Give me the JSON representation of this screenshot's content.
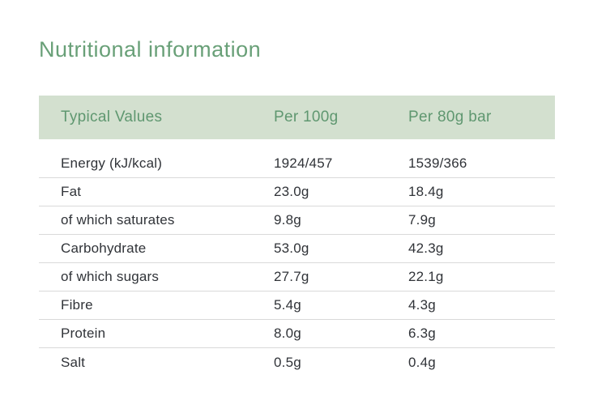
{
  "page": {
    "title": "Nutritional information"
  },
  "table": {
    "headers": {
      "col1": "Typical Values",
      "col2": "Per 100g",
      "col3": "Per 80g bar"
    },
    "rows": [
      {
        "label": "Energy (kJ/kcal)",
        "per100g": "1924/457",
        "per80g": "1539/366"
      },
      {
        "label": "Fat",
        "per100g": "23.0g",
        "per80g": "18.4g"
      },
      {
        "label": "of which saturates",
        "per100g": "9.8g",
        "per80g": "7.9g"
      },
      {
        "label": "Carbohydrate",
        "per100g": "53.0g",
        "per80g": "42.3g"
      },
      {
        "label": "of which sugars",
        "per100g": "27.7g",
        "per80g": "22.1g"
      },
      {
        "label": "Fibre",
        "per100g": "5.4g",
        "per80g": "4.3g"
      },
      {
        "label": "Protein",
        "per100g": "8.0g",
        "per80g": "6.3g"
      },
      {
        "label": "Salt",
        "per100g": "0.5g",
        "per80g": "0.4g"
      }
    ]
  },
  "colors": {
    "title_green": "#69a078",
    "header_bg": "#d3e0cf",
    "header_text": "#5f9770",
    "body_text": "#303338",
    "divider": "#d9d9d9"
  }
}
